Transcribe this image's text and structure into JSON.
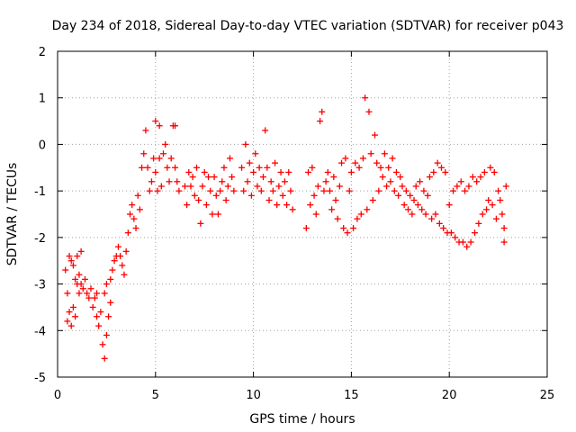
{
  "chart_data": {
    "type": "scatter",
    "title": "Day 234 of 2018, Sidereal Day-to-day VTEC variation (SDTVAR) for receiver p043",
    "xlabel": "GPS time / hours",
    "ylabel": "SDTVAR / TECUs",
    "xlim": [
      0,
      25
    ],
    "ylim": [
      -5,
      2
    ],
    "xticks": [
      0,
      5,
      10,
      15,
      20,
      25
    ],
    "yticks": [
      -5,
      -4,
      -3,
      -2,
      -1,
      0,
      1,
      2
    ],
    "xtick_labels": [
      "0",
      "5",
      "10",
      "15",
      "20",
      "25"
    ],
    "ytick_labels": [
      "-5",
      "-4",
      "-3",
      "-2",
      "-1",
      "0",
      "1",
      "2"
    ],
    "grid": true,
    "marker": "+",
    "series": [
      {
        "name": "SDTVAR",
        "color": "#ff0000",
        "points": [
          [
            0.4,
            -2.7
          ],
          [
            0.5,
            -3.2
          ],
          [
            0.5,
            -3.8
          ],
          [
            0.6,
            -2.4
          ],
          [
            0.6,
            -3.6
          ],
          [
            0.7,
            -2.5
          ],
          [
            0.7,
            -3.9
          ],
          [
            0.8,
            -2.6
          ],
          [
            0.8,
            -3.5
          ],
          [
            0.9,
            -2.9
          ],
          [
            0.9,
            -3.7
          ],
          [
            1.0,
            -2.4
          ],
          [
            1.0,
            -3.0
          ],
          [
            1.1,
            -2.8
          ],
          [
            1.1,
            -3.2
          ],
          [
            1.2,
            -2.3
          ],
          [
            1.2,
            -3.0
          ],
          [
            1.3,
            -3.1
          ],
          [
            1.4,
            -2.9
          ],
          [
            1.5,
            -3.2
          ],
          [
            1.6,
            -3.3
          ],
          [
            1.7,
            -3.1
          ],
          [
            1.8,
            -3.5
          ],
          [
            1.9,
            -3.3
          ],
          [
            2.0,
            -3.7
          ],
          [
            2.0,
            -3.2
          ],
          [
            2.1,
            -3.9
          ],
          [
            2.2,
            -3.6
          ],
          [
            2.3,
            -4.3
          ],
          [
            2.4,
            -4.6
          ],
          [
            2.4,
            -3.2
          ],
          [
            2.5,
            -4.1
          ],
          [
            2.5,
            -3.0
          ],
          [
            2.6,
            -3.7
          ],
          [
            2.7,
            -2.9
          ],
          [
            2.7,
            -3.4
          ],
          [
            2.8,
            -2.7
          ],
          [
            2.9,
            -2.5
          ],
          [
            3.0,
            -2.4
          ],
          [
            3.1,
            -2.2
          ],
          [
            3.2,
            -2.4
          ],
          [
            3.3,
            -2.6
          ],
          [
            3.4,
            -2.8
          ],
          [
            3.5,
            -2.3
          ],
          [
            3.6,
            -1.9
          ],
          [
            3.7,
            -1.5
          ],
          [
            3.8,
            -1.3
          ],
          [
            3.9,
            -1.6
          ],
          [
            4.0,
            -1.8
          ],
          [
            4.1,
            -1.1
          ],
          [
            4.2,
            -1.4
          ],
          [
            4.3,
            -0.5
          ],
          [
            4.4,
            -0.2
          ],
          [
            4.5,
            0.3
          ],
          [
            4.6,
            -0.5
          ],
          [
            4.7,
            -1.0
          ],
          [
            4.8,
            -0.8
          ],
          [
            4.9,
            -0.3
          ],
          [
            5.0,
            0.5
          ],
          [
            5.0,
            -0.6
          ],
          [
            5.1,
            -1.0
          ],
          [
            5.2,
            0.4
          ],
          [
            5.2,
            -0.3
          ],
          [
            5.3,
            -0.9
          ],
          [
            5.4,
            -0.2
          ],
          [
            5.5,
            0.0
          ],
          [
            5.6,
            -0.5
          ],
          [
            5.7,
            -0.8
          ],
          [
            5.8,
            -0.3
          ],
          [
            5.9,
            0.4
          ],
          [
            6.0,
            0.4
          ],
          [
            6.0,
            -0.5
          ],
          [
            6.1,
            -0.8
          ],
          [
            6.2,
            -1.0
          ],
          [
            6.5,
            -0.9
          ],
          [
            6.6,
            -1.3
          ],
          [
            6.7,
            -0.6
          ],
          [
            6.8,
            -0.9
          ],
          [
            6.9,
            -0.7
          ],
          [
            7.0,
            -1.1
          ],
          [
            7.1,
            -0.5
          ],
          [
            7.2,
            -1.2
          ],
          [
            7.3,
            -1.7
          ],
          [
            7.4,
            -0.9
          ],
          [
            7.5,
            -0.6
          ],
          [
            7.6,
            -1.3
          ],
          [
            7.7,
            -0.7
          ],
          [
            7.8,
            -1.0
          ],
          [
            7.9,
            -1.5
          ],
          [
            8.0,
            -0.7
          ],
          [
            8.1,
            -1.1
          ],
          [
            8.2,
            -1.5
          ],
          [
            8.3,
            -1.0
          ],
          [
            8.4,
            -0.8
          ],
          [
            8.5,
            -0.5
          ],
          [
            8.6,
            -1.2
          ],
          [
            8.7,
            -0.9
          ],
          [
            8.8,
            -0.3
          ],
          [
            8.9,
            -0.7
          ],
          [
            9.0,
            -1.0
          ],
          [
            9.4,
            -0.5
          ],
          [
            9.5,
            -1.0
          ],
          [
            9.6,
            0.0
          ],
          [
            9.7,
            -0.8
          ],
          [
            9.8,
            -0.4
          ],
          [
            9.9,
            -1.1
          ],
          [
            10.0,
            -0.6
          ],
          [
            10.1,
            -0.2
          ],
          [
            10.2,
            -0.9
          ],
          [
            10.3,
            -0.5
          ],
          [
            10.4,
            -1.0
          ],
          [
            10.5,
            -0.7
          ],
          [
            10.6,
            0.3
          ],
          [
            10.7,
            -0.5
          ],
          [
            10.8,
            -1.2
          ],
          [
            10.9,
            -0.8
          ],
          [
            11.0,
            -1.0
          ],
          [
            11.1,
            -0.4
          ],
          [
            11.2,
            -1.3
          ],
          [
            11.3,
            -0.9
          ],
          [
            11.4,
            -0.6
          ],
          [
            11.5,
            -1.1
          ],
          [
            11.6,
            -0.8
          ],
          [
            11.7,
            -1.3
          ],
          [
            11.8,
            -0.6
          ],
          [
            11.9,
            -1.0
          ],
          [
            12.0,
            -1.4
          ],
          [
            12.7,
            -1.8
          ],
          [
            12.8,
            -0.6
          ],
          [
            12.9,
            -1.3
          ],
          [
            13.0,
            -0.5
          ],
          [
            13.1,
            -1.1
          ],
          [
            13.2,
            -1.5
          ],
          [
            13.3,
            -0.9
          ],
          [
            13.4,
            0.5
          ],
          [
            13.5,
            0.7
          ],
          [
            13.6,
            -1.0
          ],
          [
            13.7,
            -0.8
          ],
          [
            13.8,
            -0.6
          ],
          [
            13.9,
            -1.0
          ],
          [
            14.0,
            -1.4
          ],
          [
            14.1,
            -0.7
          ],
          [
            14.2,
            -1.2
          ],
          [
            14.3,
            -1.6
          ],
          [
            14.4,
            -0.9
          ],
          [
            14.5,
            -0.4
          ],
          [
            14.6,
            -1.8
          ],
          [
            14.7,
            -0.3
          ],
          [
            14.8,
            -1.9
          ],
          [
            14.9,
            -1.0
          ],
          [
            15.0,
            -0.6
          ],
          [
            15.1,
            -1.8
          ],
          [
            15.2,
            -0.4
          ],
          [
            15.3,
            -1.6
          ],
          [
            15.4,
            -0.5
          ],
          [
            15.5,
            -1.5
          ],
          [
            15.6,
            -0.3
          ],
          [
            15.7,
            1.0
          ],
          [
            15.8,
            -1.4
          ],
          [
            15.9,
            0.7
          ],
          [
            16.0,
            -0.2
          ],
          [
            16.1,
            -1.2
          ],
          [
            16.2,
            0.2
          ],
          [
            16.3,
            -0.4
          ],
          [
            16.4,
            -1.0
          ],
          [
            16.5,
            -0.5
          ],
          [
            16.6,
            -0.7
          ],
          [
            16.7,
            -0.2
          ],
          [
            16.8,
            -0.9
          ],
          [
            16.9,
            -0.5
          ],
          [
            17.0,
            -0.8
          ],
          [
            17.1,
            -0.3
          ],
          [
            17.2,
            -1.0
          ],
          [
            17.3,
            -0.6
          ],
          [
            17.4,
            -1.1
          ],
          [
            17.5,
            -0.7
          ],
          [
            17.6,
            -0.9
          ],
          [
            17.7,
            -1.3
          ],
          [
            17.8,
            -1.0
          ],
          [
            17.9,
            -1.4
          ],
          [
            18.0,
            -1.1
          ],
          [
            18.1,
            -1.5
          ],
          [
            18.2,
            -1.2
          ],
          [
            18.3,
            -0.9
          ],
          [
            18.4,
            -1.3
          ],
          [
            18.5,
            -0.8
          ],
          [
            18.6,
            -1.4
          ],
          [
            18.7,
            -1.0
          ],
          [
            18.8,
            -1.5
          ],
          [
            18.9,
            -1.1
          ],
          [
            19.0,
            -0.7
          ],
          [
            19.1,
            -1.6
          ],
          [
            19.2,
            -0.6
          ],
          [
            19.3,
            -1.5
          ],
          [
            19.4,
            -0.4
          ],
          [
            19.5,
            -1.7
          ],
          [
            19.6,
            -0.5
          ],
          [
            19.7,
            -1.8
          ],
          [
            19.8,
            -0.6
          ],
          [
            19.9,
            -1.9
          ],
          [
            20.0,
            -1.3
          ],
          [
            20.1,
            -1.9
          ],
          [
            20.2,
            -1.0
          ],
          [
            20.3,
            -2.0
          ],
          [
            20.4,
            -0.9
          ],
          [
            20.5,
            -2.1
          ],
          [
            20.6,
            -0.8
          ],
          [
            20.7,
            -2.1
          ],
          [
            20.8,
            -1.0
          ],
          [
            20.9,
            -2.2
          ],
          [
            21.0,
            -0.9
          ],
          [
            21.1,
            -2.1
          ],
          [
            21.2,
            -0.7
          ],
          [
            21.3,
            -1.9
          ],
          [
            21.4,
            -0.8
          ],
          [
            21.5,
            -1.7
          ],
          [
            21.6,
            -0.7
          ],
          [
            21.7,
            -1.5
          ],
          [
            21.8,
            -0.6
          ],
          [
            21.9,
            -1.4
          ],
          [
            22.0,
            -1.2
          ],
          [
            22.1,
            -0.5
          ],
          [
            22.2,
            -1.3
          ],
          [
            22.3,
            -0.6
          ],
          [
            22.4,
            -1.6
          ],
          [
            22.5,
            -1.0
          ],
          [
            22.6,
            -1.2
          ],
          [
            22.7,
            -1.5
          ],
          [
            22.8,
            -1.8
          ],
          [
            22.8,
            -2.1
          ],
          [
            22.9,
            -0.9
          ]
        ]
      }
    ]
  }
}
